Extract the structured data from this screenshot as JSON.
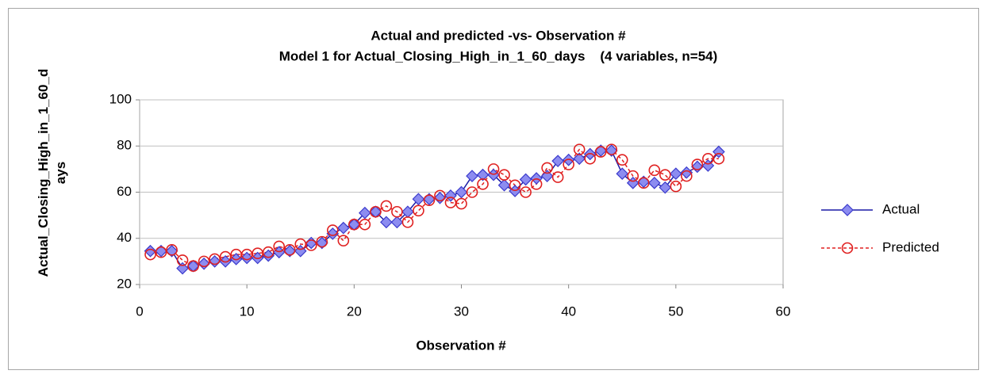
{
  "chart_data": {
    "type": "line",
    "title": "Actual and predicted -vs- Observation #",
    "subtitle": "Model 1 for Actual_Closing_High_in_1_60_days    (4 variables, n=54)",
    "xlabel": "Observation #",
    "ylabel": "Actual_Closing_High_in_1_60_days",
    "x": [
      1,
      2,
      3,
      4,
      5,
      6,
      7,
      8,
      9,
      10,
      11,
      12,
      13,
      14,
      15,
      16,
      17,
      18,
      19,
      20,
      21,
      22,
      23,
      24,
      25,
      26,
      27,
      28,
      29,
      30,
      31,
      32,
      33,
      34,
      35,
      36,
      37,
      38,
      39,
      40,
      41,
      42,
      43,
      44,
      45,
      46,
      47,
      48,
      49,
      50,
      51,
      52,
      53,
      54
    ],
    "series": [
      {
        "name": "Actual",
        "color": "#1a1aa6",
        "marker": "diamond",
        "marker_fill": "#8c8cf0",
        "linestyle": "solid",
        "values": [
          34.5,
          34.5,
          34.5,
          27,
          28,
          29,
          30,
          30,
          31,
          31.5,
          31.5,
          32.5,
          34,
          34.5,
          34.5,
          38,
          38,
          42,
          44.5,
          46,
          51,
          51.5,
          47,
          47,
          51.5,
          57,
          57,
          57.5,
          58.5,
          60,
          67,
          67.5,
          67.5,
          63,
          60.5,
          65.5,
          66,
          67,
          73.5,
          74,
          74.5,
          76.5,
          78,
          78,
          68,
          64,
          64.5,
          64,
          62,
          68,
          68.5,
          71,
          71.5,
          77.5
        ]
      },
      {
        "name": "Predicted",
        "color": "#e02020",
        "marker": "circle",
        "marker_fill": "none",
        "linestyle": "dashed",
        "values": [
          33,
          34,
          35,
          30.5,
          28,
          30,
          31,
          32,
          33,
          33,
          33.5,
          34,
          36.5,
          35,
          37.5,
          37,
          38.5,
          43.5,
          39,
          46,
          46,
          51.5,
          54,
          51.5,
          47,
          52,
          56.5,
          58.5,
          55.5,
          55,
          60,
          63.5,
          70,
          67.5,
          63,
          60,
          63.5,
          70.5,
          66.5,
          72,
          78.5,
          74.5,
          77.5,
          78.5,
          74,
          67,
          64,
          69.5,
          67.5,
          62.5,
          67,
          72,
          74.5,
          74.5
        ]
      }
    ],
    "xlim": [
      0,
      60
    ],
    "xticks": [
      0,
      10,
      20,
      30,
      40,
      50,
      60
    ],
    "ylim": [
      20,
      100
    ],
    "yticks": [
      20,
      40,
      60,
      80,
      100
    ],
    "grid": true,
    "legend": "right"
  }
}
